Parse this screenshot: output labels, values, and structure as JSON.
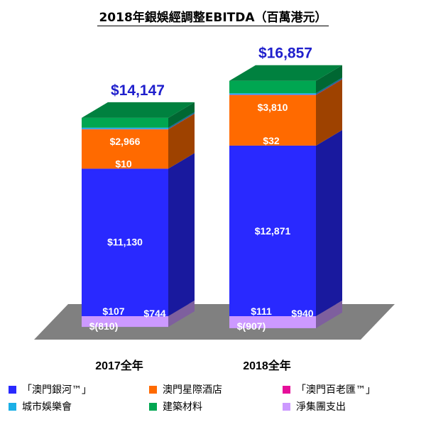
{
  "title": "2018年銀娛經調整EBITDA（百萬港元）",
  "chart_data": {
    "type": "bar",
    "stacked": true,
    "three_d": true,
    "categories": [
      "2017全年",
      "2018全年"
    ],
    "totals": [
      "$14,147",
      "$16,857"
    ],
    "series": [
      {
        "name": "「澳門銀河™」",
        "color": "#2929FF",
        "values": [
          11130,
          12871
        ],
        "labels": [
          "$11,130",
          "$12,871"
        ]
      },
      {
        "name": "澳門星際酒店",
        "color": "#FF6A00",
        "values": [
          2966,
          3810
        ],
        "labels": [
          "$2,966",
          "$3,810"
        ]
      },
      {
        "name": "「澳門百老匯™」",
        "color": "#E60E9A",
        "values": [
          10,
          32
        ],
        "labels": [
          "$10",
          "$32"
        ]
      },
      {
        "name": "城市娛樂會",
        "color": "#1BAFE6",
        "values": [
          107,
          111
        ],
        "labels": [
          "$107",
          "$111"
        ]
      },
      {
        "name": "建築材料",
        "color": "#00A651",
        "values": [
          744,
          940
        ],
        "labels": [
          "$744",
          "$940"
        ]
      },
      {
        "name": "淨集團支出",
        "color": "#CC99FF",
        "values": [
          -810,
          -907
        ],
        "labels": [
          "$(810)",
          "$(907)"
        ]
      }
    ],
    "grid": false,
    "legend_position": "bottom"
  }
}
